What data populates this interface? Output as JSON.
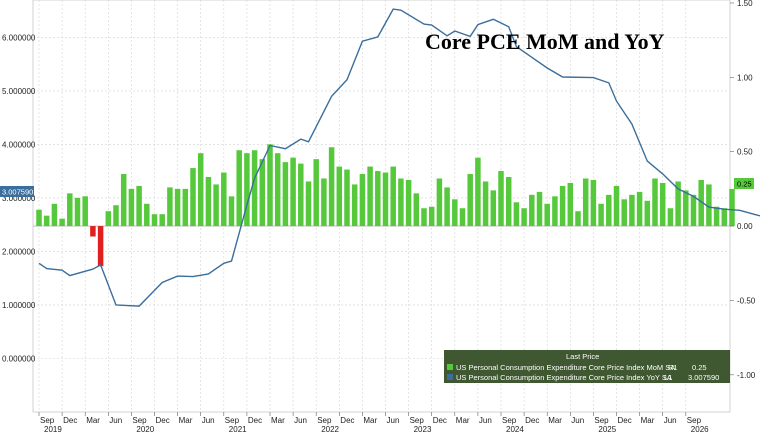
{
  "chart_data": {
    "type": "bar+line",
    "title": "Core PCE MoM and YoY",
    "x_axis": {
      "months": [
        "Sep",
        "Dec",
        "Mar",
        "Jun",
        "Sep",
        "Dec",
        "Mar",
        "Jun",
        "Sep",
        "Dec",
        "Mar",
        "Jun",
        "Sep",
        "Dec",
        "Mar",
        "Jun",
        "Sep",
        "Dec",
        "Mar",
        "Jun",
        "Sep",
        "Dec",
        "Mar",
        "Jun",
        "Sep",
        "Dec",
        "Mar",
        "Jun",
        "Sep"
      ],
      "years": [
        "2019",
        "2020",
        "2021",
        "2022",
        "2023",
        "2024",
        "2025",
        "2026"
      ]
    },
    "left_axis": {
      "ticks": [
        "0.000000",
        "1.000000",
        "2.000000",
        "3.000000",
        "4.000000",
        "5.000000",
        "6.000000"
      ],
      "range": [
        -1.0,
        6.7
      ]
    },
    "right_axis": {
      "ticks": [
        "-1.00",
        "-0.50",
        "0.00",
        "0.50",
        "1.00",
        "1.50"
      ],
      "range": [
        -1.25,
        1.52
      ]
    },
    "series": [
      {
        "name": "US Personal Consumption Expenditure Core Price Index MoM SA",
        "axis": "R1",
        "kind": "bar",
        "last_value": "0.25",
        "label_value": "0.25",
        "values": [
          0.11,
          0.07,
          0.15,
          0.05,
          0.22,
          0.19,
          0.2,
          -0.07,
          -0.27,
          0.1,
          0.14,
          0.35,
          0.25,
          0.27,
          0.15,
          0.08,
          0.08,
          0.26,
          0.25,
          0.25,
          0.39,
          0.49,
          0.33,
          0.28,
          0.36,
          0.2,
          0.51,
          0.49,
          0.51,
          0.45,
          0.55,
          0.49,
          0.43,
          0.46,
          0.42,
          0.3,
          0.45,
          0.32,
          0.53,
          0.4,
          0.38,
          0.28,
          0.35,
          0.4,
          0.37,
          0.36,
          0.4,
          0.32,
          0.31,
          0.22,
          0.12,
          0.13,
          0.32,
          0.26,
          0.18,
          0.12,
          0.35,
          0.46,
          0.3,
          0.24,
          0.37,
          0.33,
          0.16,
          0.12,
          0.21,
          0.23,
          0.15,
          0.2,
          0.27,
          0.29,
          0.1,
          0.32,
          0.31,
          0.15,
          0.21,
          0.27,
          0.18,
          0.21,
          0.23,
          0.17,
          0.32,
          0.29,
          0.12,
          0.3,
          0.24,
          0.21,
          0.31,
          0.28,
          0.13,
          0.12,
          0.25
        ],
        "color": "#55c93b"
      },
      {
        "name": "US Personal Consumption Expenditure Core Price Index YoY SA",
        "axis": "L1",
        "kind": "line",
        "last_value": "3.007590",
        "label_value": "3.007590",
        "points": [
          [
            0,
            1.78
          ],
          [
            1,
            1.68
          ],
          [
            3,
            1.65
          ],
          [
            4,
            1.55
          ],
          [
            7,
            1.67
          ],
          [
            8,
            1.75
          ],
          [
            10,
            1.0
          ],
          [
            13,
            0.98
          ],
          [
            16,
            1.42
          ],
          [
            18,
            1.54
          ],
          [
            20,
            1.53
          ],
          [
            22,
            1.58
          ],
          [
            24,
            1.78
          ],
          [
            25,
            1.82
          ],
          [
            27,
            2.87
          ],
          [
            28,
            3.37
          ],
          [
            30,
            3.98
          ],
          [
            32,
            3.92
          ],
          [
            34,
            4.1
          ],
          [
            35,
            4.05
          ],
          [
            38,
            4.9
          ],
          [
            40,
            5.21
          ],
          [
            42,
            5.93
          ],
          [
            44,
            6.01
          ],
          [
            46,
            6.53
          ],
          [
            47,
            6.51
          ],
          [
            50,
            6.25
          ],
          [
            51,
            6.23
          ],
          [
            53,
            6.03
          ],
          [
            54,
            6.12
          ],
          [
            56,
            6.02
          ],
          [
            57,
            6.24
          ],
          [
            59,
            6.34
          ],
          [
            61,
            6.2
          ],
          [
            62,
            5.83
          ],
          [
            64,
            5.63
          ],
          [
            66,
            5.43
          ],
          [
            68,
            5.26
          ],
          [
            72,
            5.25
          ],
          [
            74,
            5.15
          ],
          [
            75,
            4.81
          ],
          [
            77,
            4.38
          ],
          [
            79,
            3.69
          ],
          [
            81,
            3.45
          ],
          [
            83,
            3.17
          ],
          [
            85,
            3.03
          ],
          [
            87,
            2.83
          ],
          [
            89,
            2.79
          ],
          [
            91,
            2.77
          ],
          [
            93,
            2.69
          ],
          [
            96,
            2.58
          ],
          [
            98,
            2.48
          ],
          [
            100,
            2.35
          ],
          [
            102,
            2.4
          ],
          [
            104,
            2.44
          ],
          [
            106,
            2.41
          ],
          [
            108,
            2.47
          ],
          [
            110,
            2.45
          ],
          [
            112,
            2.4
          ],
          [
            114,
            2.45
          ],
          [
            116,
            2.33
          ],
          [
            117,
            2.19
          ],
          [
            119,
            2.31
          ],
          [
            121,
            2.43
          ],
          [
            123,
            2.43
          ],
          [
            125,
            2.44
          ],
          [
            127,
            2.41
          ],
          [
            129,
            2.35
          ],
          [
            131,
            2.49
          ],
          [
            133,
            2.64
          ],
          [
            135,
            2.69
          ],
          [
            137,
            2.75
          ],
          [
            139,
            2.74
          ],
          [
            141,
            2.82
          ],
          [
            143,
            2.98
          ],
          [
            145,
            2.88
          ],
          [
            147,
            2.93
          ],
          [
            149,
            2.91
          ],
          [
            151,
            2.98
          ],
          [
            153,
            3.03
          ],
          [
            155,
            2.97
          ],
          [
            157,
            3.01
          ]
        ],
        "color": "#3b6e9c"
      }
    ],
    "legend": {
      "header": "Last Price",
      "placement": "bottom-right"
    },
    "grid": true
  }
}
